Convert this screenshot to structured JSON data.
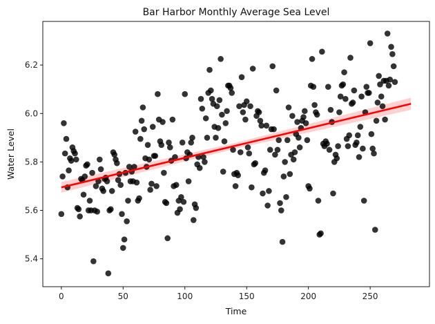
{
  "chart_data": {
    "type": "scatter",
    "title": "Bar Harbor Monthly Average Sea Level",
    "xlabel": "Time",
    "ylabel": "Water Level",
    "xlim": [
      -15,
      298
    ],
    "ylim": [
      5.285,
      6.38
    ],
    "xticks": [
      0,
      50,
      100,
      150,
      200,
      250
    ],
    "yticks": [
      5.4,
      5.6,
      5.8,
      6.0,
      6.2
    ],
    "ytick_labels": [
      "5.4",
      "5.6",
      "5.8",
      "6.0",
      "6.2"
    ],
    "grid": false,
    "point_color": "#000000",
    "line_color": "#ff0000",
    "band_color": "#ffc8c8",
    "regression": {
      "x_start": 0,
      "y_start": 5.695,
      "x_end": 283,
      "y_end": 6.04,
      "ci_half_width_start": 0.022,
      "ci_half_width_mid": 0.012,
      "ci_half_width_end": 0.025
    },
    "points": [
      [
        0,
        5.585
      ],
      [
        1,
        5.74
      ],
      [
        2,
        5.96
      ],
      [
        3,
        5.835
      ],
      [
        4,
        5.895
      ],
      [
        5,
        5.695
      ],
      [
        6,
        5.765
      ],
      [
        7,
        5.815
      ],
      [
        8,
        5.805
      ],
      [
        9,
        5.86
      ],
      [
        10,
        5.845
      ],
      [
        11,
        5.835
      ],
      [
        12,
        5.81
      ],
      [
        13,
        5.61
      ],
      [
        14,
        5.605
      ],
      [
        15,
        5.575
      ],
      [
        16,
        5.73
      ],
      [
        17,
        5.725
      ],
      [
        18,
        5.665
      ],
      [
        19,
        5.74
      ],
      [
        20,
        5.785
      ],
      [
        21,
        5.79
      ],
      [
        22,
        5.6
      ],
      [
        23,
        5.64
      ],
      [
        24,
        5.6
      ],
      [
        25,
        5.755
      ],
      [
        26,
        5.39
      ],
      [
        27,
        5.6
      ],
      [
        28,
        5.7
      ],
      [
        29,
        5.595
      ],
      [
        30,
        5.72
      ],
      [
        31,
        5.81
      ],
      [
        32,
        5.77
      ],
      [
        33,
        5.69
      ],
      [
        34,
        5.68
      ],
      [
        35,
        5.73
      ],
      [
        36,
        5.735
      ],
      [
        37,
        5.72
      ],
      [
        38,
        5.34
      ],
      [
        39,
        5.6
      ],
      [
        40,
        5.605
      ],
      [
        41,
        5.68
      ],
      [
        42,
        5.84
      ],
      [
        43,
        5.83
      ],
      [
        44,
        5.81
      ],
      [
        45,
        5.795
      ],
      [
        46,
        5.725
      ],
      [
        47,
        5.75
      ],
      [
        48,
        5.705
      ],
      [
        49,
        5.585
      ],
      [
        50,
        5.445
      ],
      [
        51,
        5.48
      ],
      [
        52,
        5.755
      ],
      [
        53,
        5.555
      ],
      [
        54,
        5.64
      ],
      [
        55,
        5.78
      ],
      [
        56,
        5.72
      ],
      [
        57,
        5.76
      ],
      [
        58,
        5.72
      ],
      [
        59,
        5.78
      ],
      [
        60,
        5.925
      ],
      [
        61,
        5.715
      ],
      [
        62,
        5.64
      ],
      [
        63,
        5.65
      ],
      [
        64,
        5.895
      ],
      [
        65,
        5.97
      ],
      [
        66,
        6.025
      ],
      [
        67,
        5.935
      ],
      [
        68,
        5.815
      ],
      [
        69,
        5.78
      ],
      [
        70,
        5.87
      ],
      [
        71,
        5.81
      ],
      [
        72,
        5.685
      ],
      [
        73,
        5.71
      ],
      [
        74,
        5.945
      ],
      [
        75,
        5.825
      ],
      [
        76,
        5.825
      ],
      [
        77,
        5.7
      ],
      [
        78,
        6.08
      ],
      [
        79,
        5.975
      ],
      [
        80,
        5.885
      ],
      [
        81,
        5.87
      ],
      [
        82,
        5.965
      ],
      [
        83,
        5.755
      ],
      [
        84,
        5.635
      ],
      [
        85,
        5.63
      ],
      [
        86,
        5.485
      ],
      [
        87,
        5.88
      ],
      [
        88,
        5.86
      ],
      [
        89,
        5.805
      ],
      [
        90,
        5.975
      ],
      [
        91,
        5.7
      ],
      [
        92,
        5.82
      ],
      [
        93,
        5.705
      ],
      [
        94,
        5.59
      ],
      [
        95,
        5.64
      ],
      [
        96,
        5.605
      ],
      [
        97,
        5.655
      ],
      [
        98,
        5.88
      ],
      [
        99,
        5.635
      ],
      [
        100,
        6.08
      ],
      [
        101,
        5.815
      ],
      [
        102,
        5.84
      ],
      [
        103,
        5.72
      ],
      [
        104,
        5.83
      ],
      [
        105,
        5.88
      ],
      [
        106,
        5.9
      ],
      [
        107,
        5.56
      ],
      [
        108,
        5.625
      ],
      [
        109,
        5.61
      ],
      [
        110,
        5.79
      ],
      [
        111,
        5.82
      ],
      [
        112,
        5.775
      ],
      [
        113,
        6.06
      ],
      [
        114,
        6.02
      ],
      [
        115,
        5.82
      ],
      [
        116,
        5.8
      ],
      [
        117,
        5.98
      ],
      [
        118,
        5.9
      ],
      [
        119,
        6.085
      ],
      [
        120,
        6.18
      ],
      [
        121,
        6.095
      ],
      [
        122,
        6.06
      ],
      [
        123,
        6.04
      ],
      [
        124,
        5.945
      ],
      [
        125,
        5.9
      ],
      [
        126,
        6.03
      ],
      [
        127,
        5.94
      ],
      [
        128,
        6.055
      ],
      [
        129,
        6.225
      ],
      [
        130,
        5.995
      ],
      [
        131,
        5.76
      ],
      [
        132,
        5.885
      ],
      [
        133,
        5.96
      ],
      [
        134,
        6.01
      ],
      [
        135,
        6.115
      ],
      [
        136,
        6.115
      ],
      [
        137,
        6.105
      ],
      [
        138,
        6.085
      ],
      [
        139,
        5.85
      ],
      [
        140,
        5.75
      ],
      [
        141,
        5.7
      ],
      [
        142,
        5.755
      ],
      [
        143,
        5.745
      ],
      [
        144,
        6.03
      ],
      [
        145,
        5.84
      ],
      [
        146,
        6.15
      ],
      [
        147,
        6.005
      ],
      [
        148,
        6.035
      ],
      [
        149,
        5.975
      ],
      [
        150,
        6.05
      ],
      [
        151,
        5.86
      ],
      [
        152,
        5.835
      ],
      [
        153,
        6.03
      ],
      [
        154,
        5.695
      ],
      [
        155,
        6.185
      ],
      [
        156,
        5.79
      ],
      [
        157,
        5.795
      ],
      [
        158,
        5.99
      ],
      [
        159,
        6.01
      ],
      [
        160,
        6.005
      ],
      [
        161,
        5.97
      ],
      [
        162,
        5.95
      ],
      [
        163,
        5.67
      ],
      [
        164,
        5.755
      ],
      [
        165,
        5.765
      ],
      [
        166,
        5.95
      ],
      [
        167,
        5.62
      ],
      [
        168,
        5.68
      ],
      [
        169,
        5.85
      ],
      [
        170,
        5.935
      ],
      [
        171,
        6.195
      ],
      [
        172,
        5.935
      ],
      [
        173,
        5.83
      ],
      [
        174,
        6.095
      ],
      [
        175,
        5.85
      ],
      [
        176,
        5.89
      ],
      [
        177,
        5.63
      ],
      [
        178,
        5.6
      ],
      [
        179,
        5.47
      ],
      [
        180,
        5.74
      ],
      [
        181,
        5.8
      ],
      [
        182,
        5.655
      ],
      [
        183,
        5.89
      ],
      [
        184,
        6.025
      ],
      [
        185,
        5.75
      ],
      [
        186,
        5.83
      ],
      [
        187,
        5.99
      ],
      [
        188,
        5.81
      ],
      [
        189,
        5.84
      ],
      [
        190,
        5.915
      ],
      [
        191,
        5.965
      ],
      [
        192,
        5.9
      ],
      [
        193,
        5.86
      ],
      [
        194,
        5.94
      ],
      [
        195,
        5.97
      ],
      [
        196,
        5.985
      ],
      [
        197,
        6.01
      ],
      [
        198,
        5.96
      ],
      [
        199,
        5.89
      ],
      [
        200,
        5.7
      ],
      [
        201,
        5.69
      ],
      [
        202,
        6.115
      ],
      [
        203,
        6.225
      ],
      [
        204,
        6.11
      ],
      [
        205,
        6.035
      ],
      [
        206,
        6.005
      ],
      [
        207,
        5.995
      ],
      [
        208,
        5.64
      ],
      [
        209,
        5.5
      ],
      [
        210,
        5.505
      ],
      [
        211,
        6.255
      ],
      [
        212,
        5.875
      ],
      [
        213,
        5.865
      ],
      [
        214,
        5.885
      ],
      [
        215,
        5.875
      ],
      [
        216,
        6.11
      ],
      [
        217,
        5.85
      ],
      [
        218,
        6.015
      ],
      [
        219,
        5.965
      ],
      [
        220,
        5.67
      ],
      [
        221,
        5.8
      ],
      [
        222,
        5.83
      ],
      [
        223,
        5.815
      ],
      [
        224,
        5.865
      ],
      [
        225,
        6.005
      ],
      [
        226,
        6.07
      ],
      [
        227,
        6.115
      ],
      [
        228,
        6.12
      ],
      [
        229,
        6.17
      ],
      [
        230,
        6.06
      ],
      [
        231,
        5.895
      ],
      [
        232,
        5.865
      ],
      [
        233,
        5.91
      ],
      [
        234,
        6.23
      ],
      [
        235,
        6.04
      ],
      [
        236,
        6.045
      ],
      [
        237,
        6.095
      ],
      [
        238,
        5.87
      ],
      [
        239,
        5.88
      ],
      [
        240,
        5.91
      ],
      [
        241,
        5.82
      ],
      [
        242,
        5.945
      ],
      [
        243,
        6.07
      ],
      [
        244,
        5.855
      ],
      [
        245,
        5.64
      ],
      [
        246,
        6.005
      ],
      [
        247,
        6.11
      ],
      [
        248,
        6.085
      ],
      [
        249,
        6.085
      ],
      [
        250,
        6.29
      ],
      [
        251,
        5.915
      ],
      [
        252,
        5.855
      ],
      [
        253,
        5.835
      ],
      [
        254,
        5.52
      ],
      [
        255,
        5.97
      ],
      [
        256,
        6.045
      ],
      [
        257,
        6.155
      ],
      [
        258,
        6.12
      ],
      [
        259,
        6.07
      ],
      [
        260,
        6.03
      ],
      [
        261,
        6.135
      ],
      [
        262,
        5.975
      ],
      [
        263,
        6.135
      ],
      [
        264,
        6.33
      ],
      [
        265,
        6.115
      ],
      [
        266,
        6.14
      ],
      [
        267,
        6.275
      ],
      [
        268,
        6.245
      ],
      [
        269,
        6.195
      ],
      [
        270,
        6.13
      ]
    ]
  }
}
